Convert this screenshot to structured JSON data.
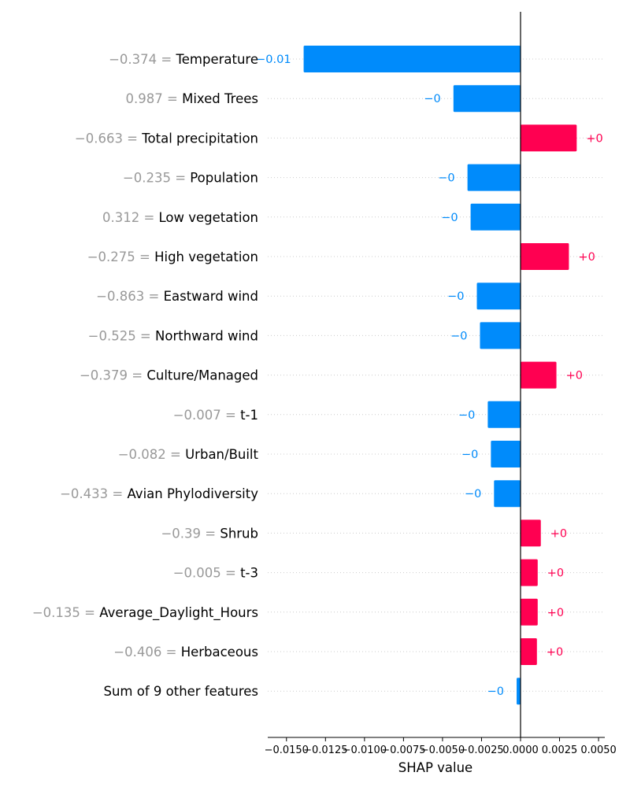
{
  "chart_data": {
    "type": "bar",
    "orientation": "horizontal",
    "xlabel": "SHAP value",
    "xlim": [
      -0.0162,
      0.0054
    ],
    "x_ticks": [
      -0.015,
      -0.0125,
      -0.01,
      -0.0075,
      -0.005,
      -0.0025,
      0.0,
      0.0025,
      0.005
    ],
    "x_tick_labels": [
      "−0.0150",
      "−0.0125",
      "−0.0100",
      "−0.0075",
      "−0.0050",
      "−0.0025",
      "0.0000",
      "0.0025",
      "0.0050"
    ],
    "grid": "horizontal dotted lines per row",
    "colors": {
      "positive": "#ff0051",
      "negative": "#008bfb",
      "feature_value": "#999999"
    },
    "features": [
      {
        "value_text": "−0.374 = ",
        "name": "Temperature",
        "shap": -0.0139,
        "label": "−0.01"
      },
      {
        "value_text": "0.987 = ",
        "name": "Mixed Trees",
        "shap": -0.0043,
        "label": "−0"
      },
      {
        "value_text": "−0.663 = ",
        "name": "Total precipitation",
        "shap": 0.0036,
        "label": "+0"
      },
      {
        "value_text": "−0.235 = ",
        "name": "Population",
        "shap": -0.0034,
        "label": "−0"
      },
      {
        "value_text": "0.312 = ",
        "name": "Low vegetation",
        "shap": -0.0032,
        "label": "−0"
      },
      {
        "value_text": "−0.275 = ",
        "name": "High vegetation",
        "shap": 0.0031,
        "label": "+0"
      },
      {
        "value_text": "−0.863 = ",
        "name": "Eastward wind",
        "shap": -0.0028,
        "label": "−0"
      },
      {
        "value_text": "−0.525 = ",
        "name": "Northward wind",
        "shap": -0.0026,
        "label": "−0"
      },
      {
        "value_text": "−0.379 = ",
        "name": "Culture/Managed",
        "shap": 0.0023,
        "label": "+0"
      },
      {
        "value_text": "−0.007 = ",
        "name": "t-1",
        "shap": -0.0021,
        "label": "−0"
      },
      {
        "value_text": "−0.082 = ",
        "name": "Urban/Built",
        "shap": -0.0019,
        "label": "−0"
      },
      {
        "value_text": "−0.433 = ",
        "name": "Avian Phylodiversity",
        "shap": -0.0017,
        "label": "−0"
      },
      {
        "value_text": "−0.39 = ",
        "name": "Shrub",
        "shap": 0.0013,
        "label": "+0"
      },
      {
        "value_text": "−0.005 = ",
        "name": "t-3",
        "shap": 0.0011,
        "label": "+0"
      },
      {
        "value_text": "−0.135 = ",
        "name": "Average_Daylight_Hours",
        "shap": 0.0011,
        "label": "+0"
      },
      {
        "value_text": "−0.406 = ",
        "name": "Herbaceous",
        "shap": 0.00105,
        "label": "+0"
      },
      {
        "value_text": "",
        "name": "Sum of 9 other features",
        "shap": -0.00025,
        "label": "−0"
      }
    ]
  }
}
